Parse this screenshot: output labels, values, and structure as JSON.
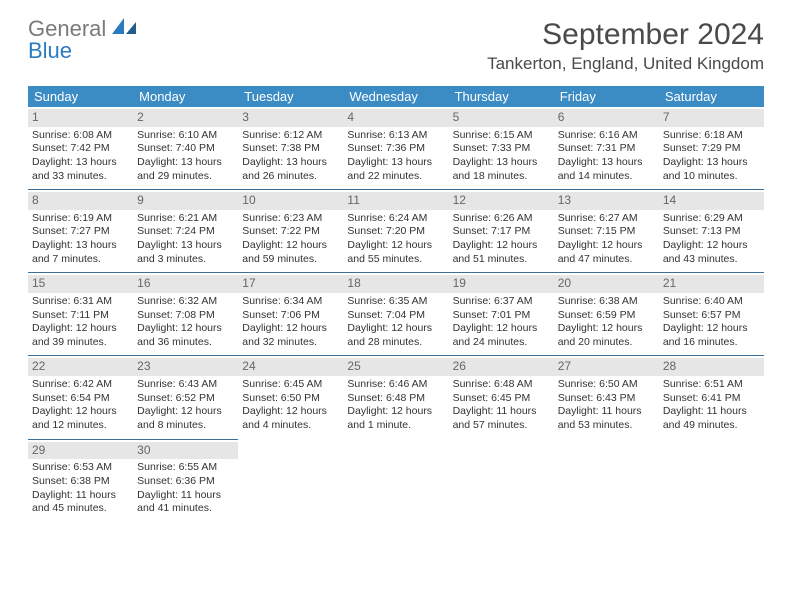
{
  "logo": {
    "line1": "General",
    "line2": "Blue"
  },
  "title": "September 2024",
  "location": "Tankerton, England, United Kingdom",
  "colors": {
    "header_bg": "#3b8bc4",
    "header_text": "#ffffff",
    "daynum_bg": "#e6e6e6",
    "daynum_text": "#666666",
    "cell_border": "#3b6f96",
    "logo_gray": "#7a7a7a",
    "logo_blue": "#2a7bbf"
  },
  "weekdays": [
    "Sunday",
    "Monday",
    "Tuesday",
    "Wednesday",
    "Thursday",
    "Friday",
    "Saturday"
  ],
  "weeks": [
    [
      {
        "n": "1",
        "sr": "Sunrise: 6:08 AM",
        "ss": "Sunset: 7:42 PM",
        "d1": "Daylight: 13 hours",
        "d2": "and 33 minutes."
      },
      {
        "n": "2",
        "sr": "Sunrise: 6:10 AM",
        "ss": "Sunset: 7:40 PM",
        "d1": "Daylight: 13 hours",
        "d2": "and 29 minutes."
      },
      {
        "n": "3",
        "sr": "Sunrise: 6:12 AM",
        "ss": "Sunset: 7:38 PM",
        "d1": "Daylight: 13 hours",
        "d2": "and 26 minutes."
      },
      {
        "n": "4",
        "sr": "Sunrise: 6:13 AM",
        "ss": "Sunset: 7:36 PM",
        "d1": "Daylight: 13 hours",
        "d2": "and 22 minutes."
      },
      {
        "n": "5",
        "sr": "Sunrise: 6:15 AM",
        "ss": "Sunset: 7:33 PM",
        "d1": "Daylight: 13 hours",
        "d2": "and 18 minutes."
      },
      {
        "n": "6",
        "sr": "Sunrise: 6:16 AM",
        "ss": "Sunset: 7:31 PM",
        "d1": "Daylight: 13 hours",
        "d2": "and 14 minutes."
      },
      {
        "n": "7",
        "sr": "Sunrise: 6:18 AM",
        "ss": "Sunset: 7:29 PM",
        "d1": "Daylight: 13 hours",
        "d2": "and 10 minutes."
      }
    ],
    [
      {
        "n": "8",
        "sr": "Sunrise: 6:19 AM",
        "ss": "Sunset: 7:27 PM",
        "d1": "Daylight: 13 hours",
        "d2": "and 7 minutes."
      },
      {
        "n": "9",
        "sr": "Sunrise: 6:21 AM",
        "ss": "Sunset: 7:24 PM",
        "d1": "Daylight: 13 hours",
        "d2": "and 3 minutes."
      },
      {
        "n": "10",
        "sr": "Sunrise: 6:23 AM",
        "ss": "Sunset: 7:22 PM",
        "d1": "Daylight: 12 hours",
        "d2": "and 59 minutes."
      },
      {
        "n": "11",
        "sr": "Sunrise: 6:24 AM",
        "ss": "Sunset: 7:20 PM",
        "d1": "Daylight: 12 hours",
        "d2": "and 55 minutes."
      },
      {
        "n": "12",
        "sr": "Sunrise: 6:26 AM",
        "ss": "Sunset: 7:17 PM",
        "d1": "Daylight: 12 hours",
        "d2": "and 51 minutes."
      },
      {
        "n": "13",
        "sr": "Sunrise: 6:27 AM",
        "ss": "Sunset: 7:15 PM",
        "d1": "Daylight: 12 hours",
        "d2": "and 47 minutes."
      },
      {
        "n": "14",
        "sr": "Sunrise: 6:29 AM",
        "ss": "Sunset: 7:13 PM",
        "d1": "Daylight: 12 hours",
        "d2": "and 43 minutes."
      }
    ],
    [
      {
        "n": "15",
        "sr": "Sunrise: 6:31 AM",
        "ss": "Sunset: 7:11 PM",
        "d1": "Daylight: 12 hours",
        "d2": "and 39 minutes."
      },
      {
        "n": "16",
        "sr": "Sunrise: 6:32 AM",
        "ss": "Sunset: 7:08 PM",
        "d1": "Daylight: 12 hours",
        "d2": "and 36 minutes."
      },
      {
        "n": "17",
        "sr": "Sunrise: 6:34 AM",
        "ss": "Sunset: 7:06 PM",
        "d1": "Daylight: 12 hours",
        "d2": "and 32 minutes."
      },
      {
        "n": "18",
        "sr": "Sunrise: 6:35 AM",
        "ss": "Sunset: 7:04 PM",
        "d1": "Daylight: 12 hours",
        "d2": "and 28 minutes."
      },
      {
        "n": "19",
        "sr": "Sunrise: 6:37 AM",
        "ss": "Sunset: 7:01 PM",
        "d1": "Daylight: 12 hours",
        "d2": "and 24 minutes."
      },
      {
        "n": "20",
        "sr": "Sunrise: 6:38 AM",
        "ss": "Sunset: 6:59 PM",
        "d1": "Daylight: 12 hours",
        "d2": "and 20 minutes."
      },
      {
        "n": "21",
        "sr": "Sunrise: 6:40 AM",
        "ss": "Sunset: 6:57 PM",
        "d1": "Daylight: 12 hours",
        "d2": "and 16 minutes."
      }
    ],
    [
      {
        "n": "22",
        "sr": "Sunrise: 6:42 AM",
        "ss": "Sunset: 6:54 PM",
        "d1": "Daylight: 12 hours",
        "d2": "and 12 minutes."
      },
      {
        "n": "23",
        "sr": "Sunrise: 6:43 AM",
        "ss": "Sunset: 6:52 PM",
        "d1": "Daylight: 12 hours",
        "d2": "and 8 minutes."
      },
      {
        "n": "24",
        "sr": "Sunrise: 6:45 AM",
        "ss": "Sunset: 6:50 PM",
        "d1": "Daylight: 12 hours",
        "d2": "and 4 minutes."
      },
      {
        "n": "25",
        "sr": "Sunrise: 6:46 AM",
        "ss": "Sunset: 6:48 PM",
        "d1": "Daylight: 12 hours",
        "d2": "and 1 minute."
      },
      {
        "n": "26",
        "sr": "Sunrise: 6:48 AM",
        "ss": "Sunset: 6:45 PM",
        "d1": "Daylight: 11 hours",
        "d2": "and 57 minutes."
      },
      {
        "n": "27",
        "sr": "Sunrise: 6:50 AM",
        "ss": "Sunset: 6:43 PM",
        "d1": "Daylight: 11 hours",
        "d2": "and 53 minutes."
      },
      {
        "n": "28",
        "sr": "Sunrise: 6:51 AM",
        "ss": "Sunset: 6:41 PM",
        "d1": "Daylight: 11 hours",
        "d2": "and 49 minutes."
      }
    ],
    [
      {
        "n": "29",
        "sr": "Sunrise: 6:53 AM",
        "ss": "Sunset: 6:38 PM",
        "d1": "Daylight: 11 hours",
        "d2": "and 45 minutes."
      },
      {
        "n": "30",
        "sr": "Sunrise: 6:55 AM",
        "ss": "Sunset: 6:36 PM",
        "d1": "Daylight: 11 hours",
        "d2": "and 41 minutes."
      },
      null,
      null,
      null,
      null,
      null
    ]
  ]
}
